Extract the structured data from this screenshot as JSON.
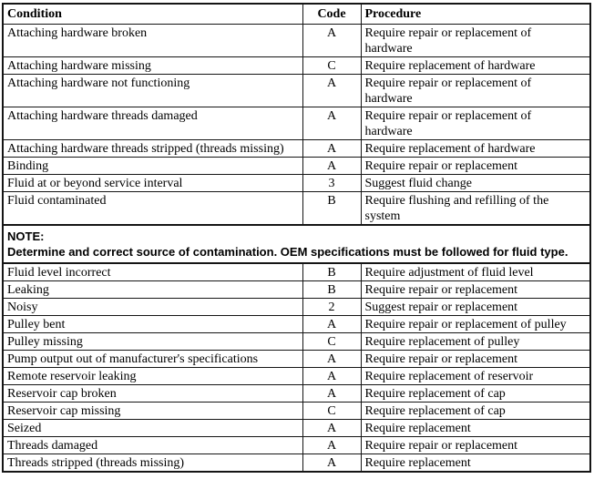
{
  "table": {
    "headers": [
      "Condition",
      "Code",
      "Procedure"
    ],
    "rows": [
      {
        "condition": "Attaching hardware broken",
        "code": "A",
        "procedure": "Require repair or replacement of hardware"
      },
      {
        "condition": "Attaching hardware missing",
        "code": "C",
        "procedure": "Require replacement of hardware"
      },
      {
        "condition": "Attaching hardware not functioning",
        "code": "A",
        "procedure": "Require repair or replacement of hardware"
      },
      {
        "condition": "Attaching hardware threads damaged",
        "code": "A",
        "procedure": "Require repair or replacement of hardware"
      },
      {
        "condition": "Attaching hardware threads stripped (threads missing)",
        "code": "A",
        "procedure": "Require replacement of hardware"
      },
      {
        "condition": "Binding",
        "code": "A",
        "procedure": "Require repair or replacement"
      },
      {
        "condition": "Fluid at or beyond service interval",
        "code": "3",
        "procedure": "Suggest fluid change"
      },
      {
        "condition": "Fluid contaminated",
        "code": "B",
        "procedure": "Require flushing and refilling of the system"
      },
      {
        "note_label": "NOTE:",
        "note_text": "Determine and correct source of contamination. OEM specifications must be followed for fluid type."
      },
      {
        "condition": "Fluid level incorrect",
        "code": "B",
        "procedure": "Require adjustment of fluid level"
      },
      {
        "condition": "Leaking",
        "code": "B",
        "procedure": "Require repair or replacement"
      },
      {
        "condition": "Noisy",
        "code": "2",
        "procedure": "Suggest repair or replacement"
      },
      {
        "condition": "Pulley bent",
        "code": "A",
        "procedure": "Require repair or replacement of pulley"
      },
      {
        "condition": "Pulley missing",
        "code": "C",
        "procedure": "Require replacement of pulley"
      },
      {
        "condition": "Pump output out of manufacturer's specifications",
        "code": "A",
        "procedure": "Require repair or replacement"
      },
      {
        "condition": "Remote reservoir leaking",
        "code": "A",
        "procedure": "Require replacement of reservoir"
      },
      {
        "condition": "Reservoir cap broken",
        "code": "A",
        "procedure": "Require replacement of cap"
      },
      {
        "condition": "Reservoir cap missing",
        "code": "C",
        "procedure": "Require replacement of cap"
      },
      {
        "condition": "Seized",
        "code": "A",
        "procedure": "Require replacement"
      },
      {
        "condition": "Threads damaged",
        "code": "A",
        "procedure": "Require repair or replacement"
      },
      {
        "condition": "Threads stripped (threads missing)",
        "code": "A",
        "procedure": "Require replacement"
      }
    ]
  }
}
